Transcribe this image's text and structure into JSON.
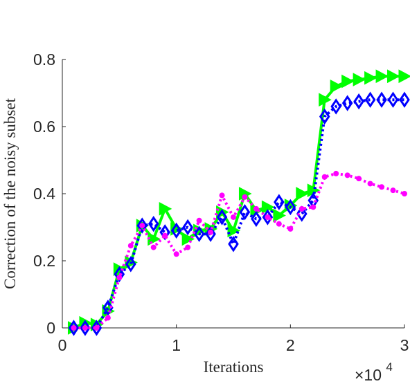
{
  "chart_data": {
    "type": "line",
    "xlabel": "Iterations",
    "ylabel": "Correction of the noisy subset",
    "x_exponent_label": "×10",
    "x_exponent_power": "4",
    "xlim": [
      0,
      30000
    ],
    "ylim": [
      0,
      0.8
    ],
    "xticks": [
      0,
      10000,
      20000,
      30000
    ],
    "xtick_labels": [
      "0",
      "1",
      "2",
      "3"
    ],
    "yticks": [
      0,
      0.2,
      0.4,
      0.6,
      0.8
    ],
    "ytick_labels": [
      "0",
      "0.2",
      "0.4",
      "0.6",
      "0.8"
    ],
    "grid": false,
    "x": [
      1000,
      2000,
      3000,
      4000,
      5000,
      6000,
      7000,
      8000,
      9000,
      10000,
      11000,
      12000,
      13000,
      14000,
      15000,
      16000,
      17000,
      18000,
      19000,
      20000,
      21000,
      22000,
      23000,
      24000,
      25000,
      26000,
      27000,
      28000,
      29000,
      30000
    ],
    "series": [
      {
        "color": "#00ff00",
        "marker": "triangle-right",
        "line": "solid",
        "values": [
          0.0,
          0.015,
          0.01,
          0.05,
          0.175,
          0.195,
          0.305,
          0.265,
          0.355,
          0.295,
          0.265,
          0.29,
          0.295,
          0.345,
          0.29,
          0.4,
          0.35,
          0.36,
          0.335,
          0.365,
          0.4,
          0.41,
          0.68,
          0.72,
          0.735,
          0.74,
          0.745,
          0.75,
          0.75,
          0.75
        ]
      },
      {
        "color": "#0000ff",
        "marker": "diamond",
        "line": "dotted",
        "values": [
          0.0,
          0.0,
          0.0,
          0.06,
          0.16,
          0.19,
          0.305,
          0.31,
          0.285,
          0.29,
          0.3,
          0.28,
          0.28,
          0.33,
          0.25,
          0.345,
          0.325,
          0.33,
          0.375,
          0.36,
          0.34,
          0.38,
          0.63,
          0.66,
          0.67,
          0.675,
          0.68,
          0.68,
          0.68,
          0.68
        ]
      },
      {
        "color": "#ff00ff",
        "marker": "circle",
        "line": "dotted",
        "values": [
          0.0,
          0.0,
          0.0,
          0.03,
          0.15,
          0.245,
          0.305,
          0.24,
          0.275,
          0.22,
          0.24,
          0.32,
          0.285,
          0.395,
          0.33,
          0.39,
          0.355,
          0.33,
          0.31,
          0.295,
          0.355,
          0.36,
          0.45,
          0.46,
          0.455,
          0.445,
          0.43,
          0.42,
          0.41,
          0.4
        ]
      }
    ]
  }
}
